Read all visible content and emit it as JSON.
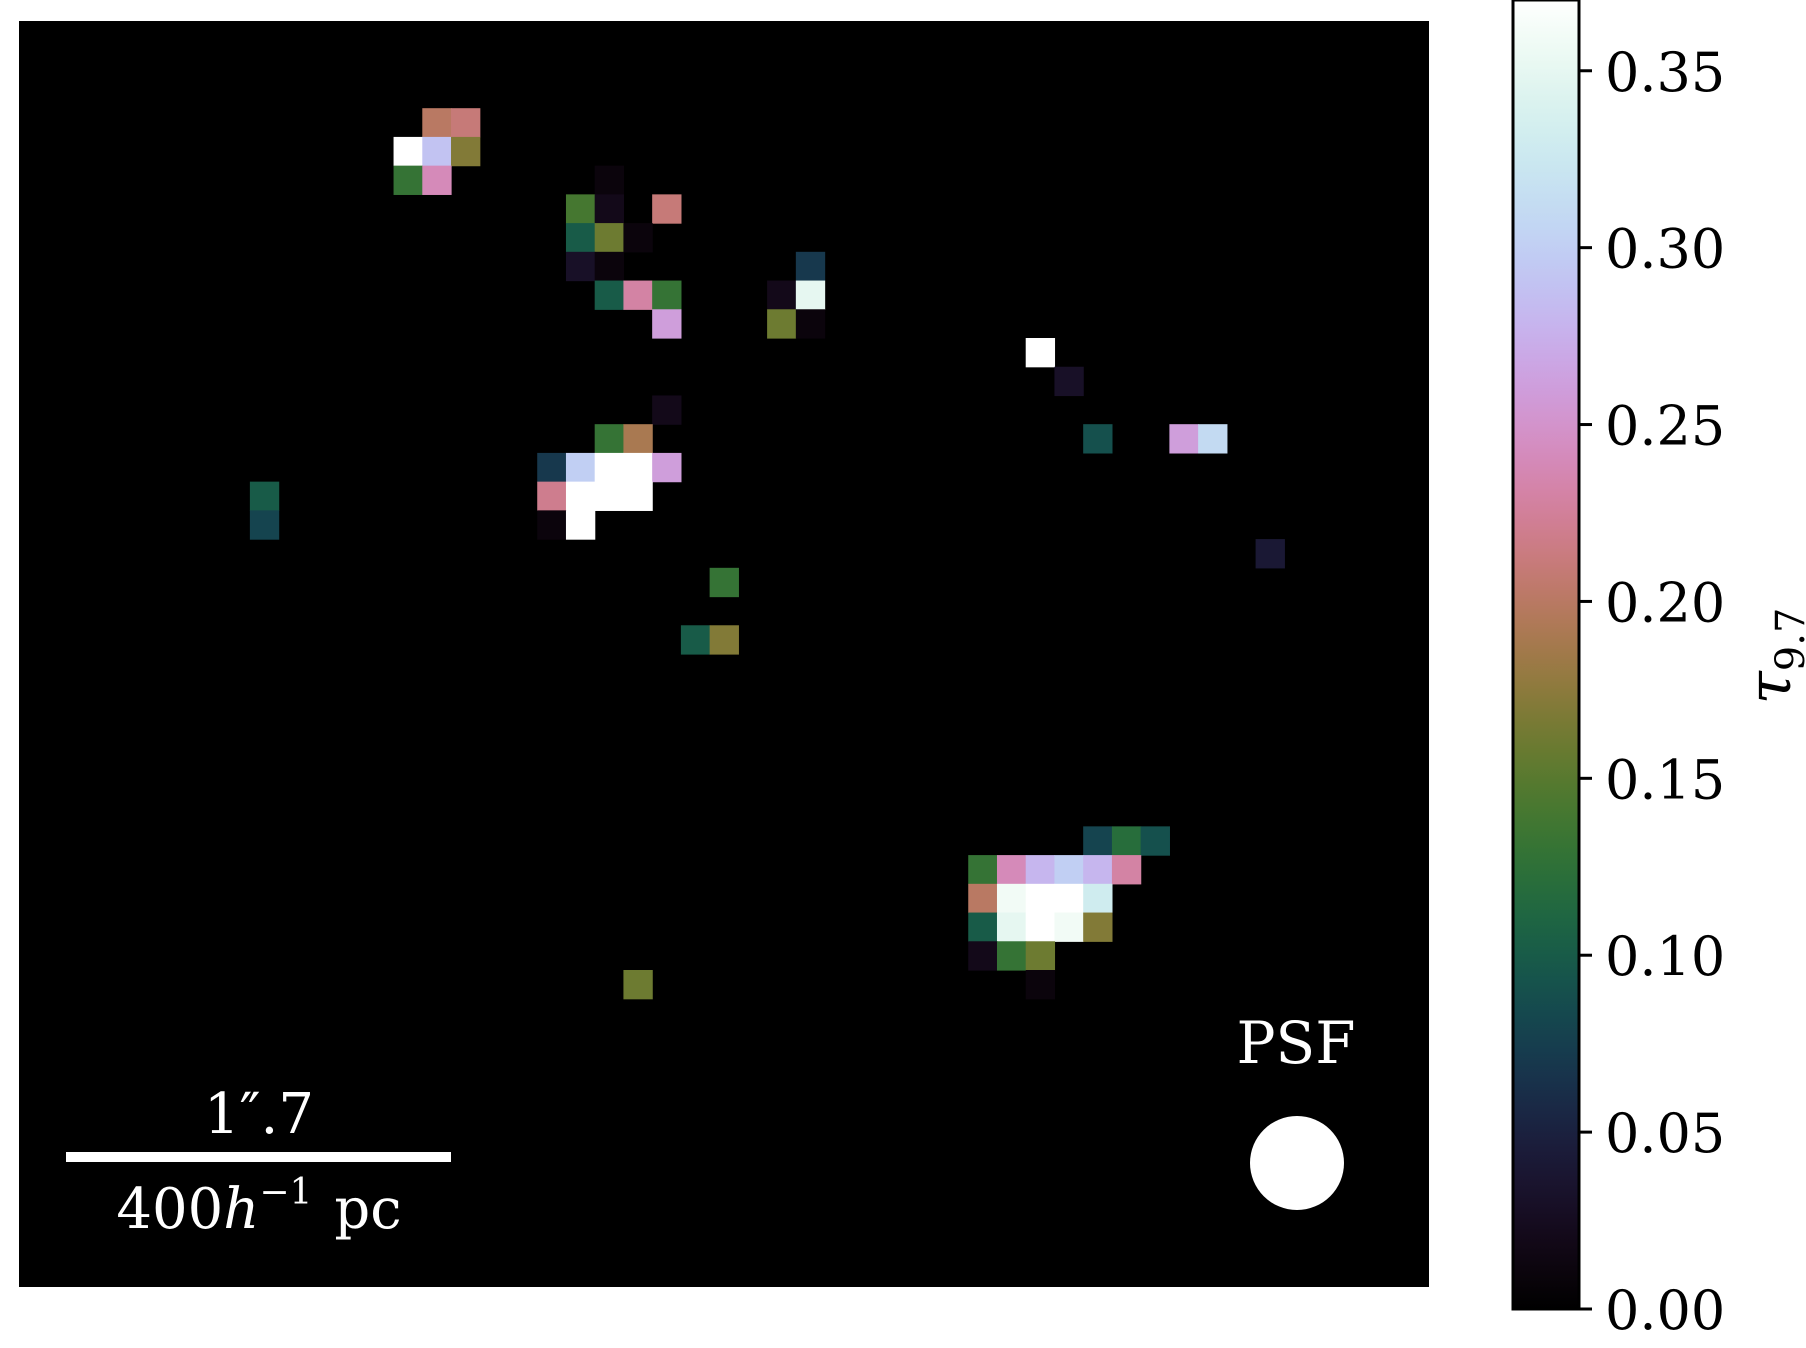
{
  "chart_data": {
    "type": "heatmap",
    "grid": {
      "cols": 49,
      "rows": 44
    },
    "background_value": 0.0,
    "pixels": [
      [
        14,
        3,
        0.2
      ],
      [
        15,
        3,
        0.21
      ],
      [
        13,
        4,
        0.37
      ],
      [
        14,
        4,
        0.29
      ],
      [
        15,
        4,
        0.17
      ],
      [
        13,
        5,
        0.13
      ],
      [
        14,
        5,
        0.24
      ],
      [
        20,
        5,
        0.01
      ],
      [
        19,
        6,
        0.14
      ],
      [
        20,
        6,
        0.02
      ],
      [
        22,
        6,
        0.21
      ],
      [
        19,
        7,
        0.1
      ],
      [
        20,
        7,
        0.16
      ],
      [
        21,
        7,
        0.01
      ],
      [
        19,
        8,
        0.03
      ],
      [
        20,
        8,
        0.01
      ],
      [
        27,
        8,
        0.07
      ],
      [
        20,
        9,
        0.1
      ],
      [
        21,
        9,
        0.23
      ],
      [
        22,
        9,
        0.13
      ],
      [
        26,
        9,
        0.02
      ],
      [
        27,
        9,
        0.35
      ],
      [
        22,
        10,
        0.26
      ],
      [
        26,
        10,
        0.16
      ],
      [
        27,
        10,
        0.01
      ],
      [
        35,
        11,
        0.37
      ],
      [
        36,
        12,
        0.03
      ],
      [
        22,
        13,
        0.02
      ],
      [
        20,
        14,
        0.13
      ],
      [
        21,
        14,
        0.19
      ],
      [
        37,
        14,
        0.09
      ],
      [
        40,
        14,
        0.26
      ],
      [
        41,
        14,
        0.31
      ],
      [
        18,
        15,
        0.07
      ],
      [
        19,
        15,
        0.3
      ],
      [
        20,
        15,
        0.37
      ],
      [
        21,
        15,
        0.37
      ],
      [
        22,
        15,
        0.26
      ],
      [
        18,
        16,
        0.22
      ],
      [
        19,
        16,
        0.37
      ],
      [
        20,
        16,
        0.37
      ],
      [
        21,
        16,
        0.37
      ],
      [
        8,
        16,
        0.1
      ],
      [
        18,
        17,
        0.01
      ],
      [
        19,
        17,
        0.37
      ],
      [
        8,
        17,
        0.08
      ],
      [
        43,
        18,
        0.04
      ],
      [
        24,
        19,
        0.13
      ],
      [
        23,
        21,
        0.1
      ],
      [
        24,
        21,
        0.17
      ],
      [
        37,
        28,
        0.08
      ],
      [
        38,
        28,
        0.12
      ],
      [
        39,
        28,
        0.09
      ],
      [
        33,
        29,
        0.13
      ],
      [
        34,
        29,
        0.24
      ],
      [
        35,
        29,
        0.28
      ],
      [
        36,
        29,
        0.3
      ],
      [
        37,
        29,
        0.28
      ],
      [
        38,
        29,
        0.23
      ],
      [
        33,
        30,
        0.2
      ],
      [
        34,
        30,
        0.36
      ],
      [
        35,
        30,
        0.37
      ],
      [
        36,
        30,
        0.37
      ],
      [
        37,
        30,
        0.33
      ],
      [
        33,
        31,
        0.1
      ],
      [
        34,
        31,
        0.35
      ],
      [
        35,
        31,
        0.37
      ],
      [
        36,
        31,
        0.36
      ],
      [
        37,
        31,
        0.17
      ],
      [
        33,
        32,
        0.02
      ],
      [
        34,
        32,
        0.13
      ],
      [
        35,
        32,
        0.16
      ],
      [
        35,
        33,
        0.01
      ],
      [
        21,
        33,
        0.16
      ]
    ],
    "colormap": "cubehelix",
    "colorbar": {
      "label": "τ",
      "label_sub": "9.7",
      "vmin": 0.0,
      "vmax": 0.37,
      "ticks": [
        0.0,
        0.05,
        0.1,
        0.15,
        0.2,
        0.25,
        0.3,
        0.35
      ],
      "tick_labels": [
        "0.00",
        "0.05",
        "0.10",
        "0.15",
        "0.20",
        "0.25",
        "0.30",
        "0.35"
      ]
    },
    "scalebar": {
      "angular_label": "1″.7",
      "physical_label_num": "400",
      "physical_label_h": "h",
      "physical_label_exp": "−1",
      "physical_label_unit": "pc"
    },
    "psf": {
      "label": "PSF"
    }
  }
}
